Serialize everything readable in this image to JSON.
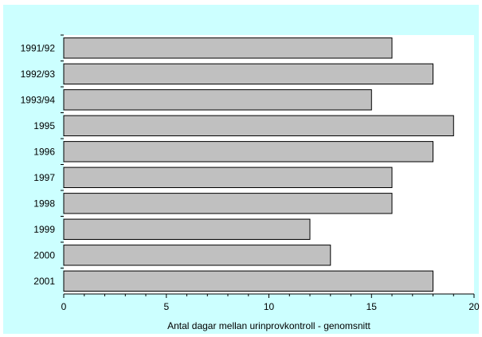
{
  "chart_data": {
    "type": "bar",
    "orientation": "horizontal",
    "categories": [
      "1991/92",
      "1992/93",
      "1993/94",
      "1995",
      "1996",
      "1997",
      "1998",
      "1999",
      "2000",
      "2001"
    ],
    "values": [
      16,
      18,
      15,
      19,
      18,
      16,
      16,
      12,
      13,
      18
    ],
    "xlabel": "Antal dagar mellan urinprovkontroll - genomsnitt",
    "xlim": [
      0,
      20
    ],
    "xticks": [
      0,
      5,
      10,
      15,
      20
    ],
    "grid": false,
    "colors": {
      "background": "#ccffff",
      "plot_area": "#ffffff",
      "bar_fill": "#c0c0c0",
      "bar_stroke": "#000000"
    }
  }
}
